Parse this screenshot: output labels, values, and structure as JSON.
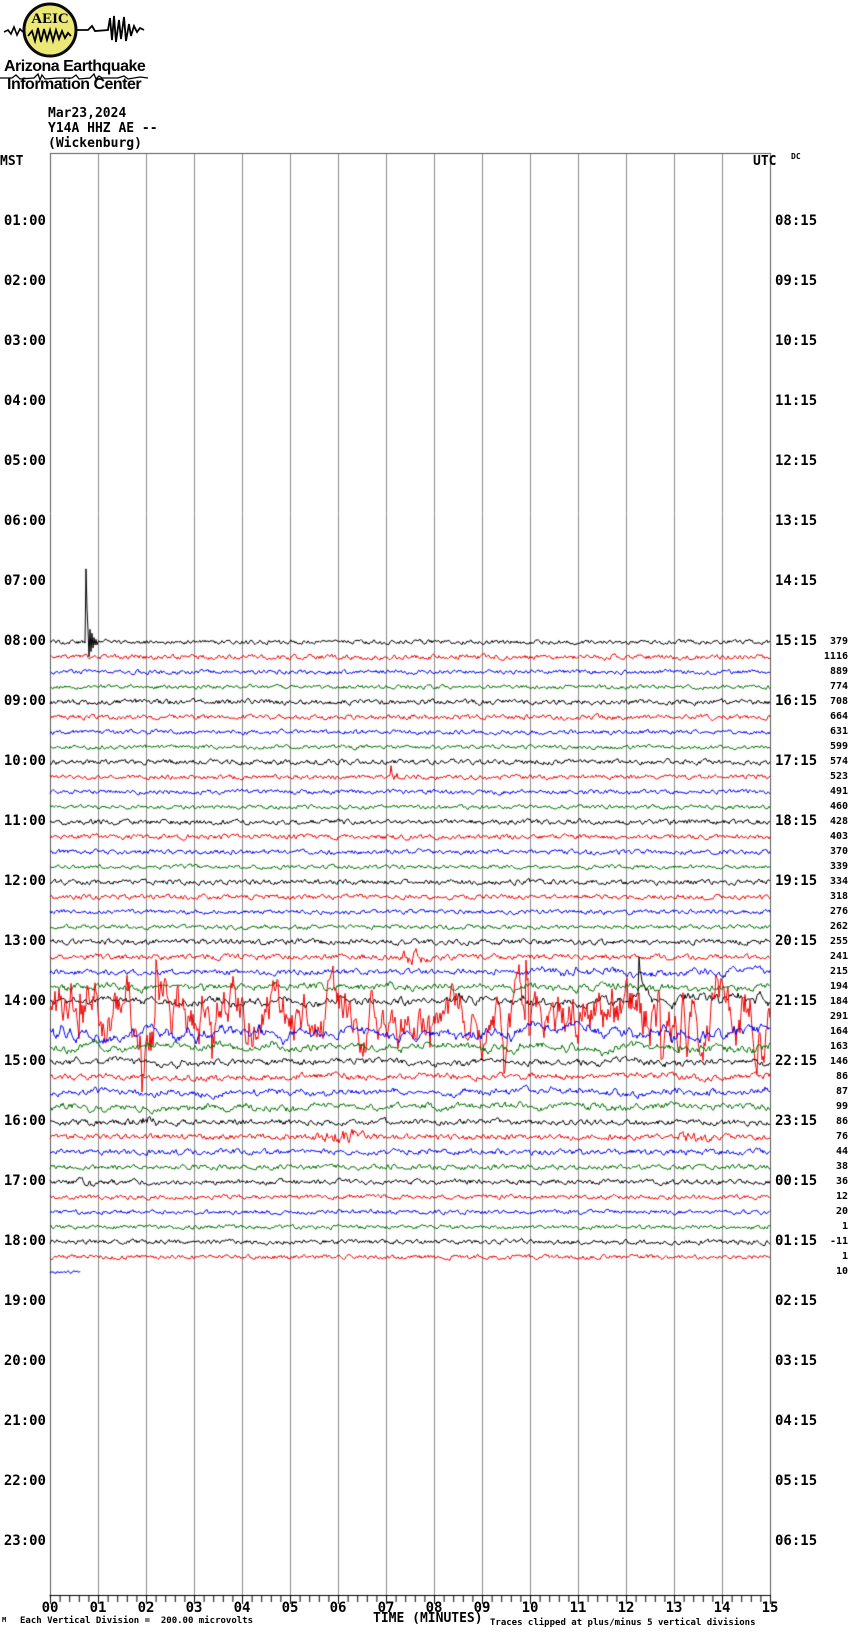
{
  "logo": {
    "acronym": "AEIC",
    "title_line1": "Arizona Earthquake",
    "title_line2": "Information Center",
    "circle_fill": "#ece878"
  },
  "header": {
    "date": "Mar23,2024",
    "station": "Y14A HHZ AE --",
    "location": "(Wickenburg)"
  },
  "axes": {
    "left_label": "MST",
    "right_label": "UTC",
    "dc_label": "DC",
    "x_label": "TIME (MINUTES)",
    "x_ticks": [
      "00",
      "01",
      "02",
      "03",
      "04",
      "05",
      "06",
      "07",
      "08",
      "09",
      "10",
      "11",
      "12",
      "13",
      "14",
      "15"
    ],
    "left_times": [
      "01:00",
      "02:00",
      "03:00",
      "04:00",
      "05:00",
      "06:00",
      "07:00",
      "08:00",
      "09:00",
      "10:00",
      "11:00",
      "12:00",
      "13:00",
      "14:00",
      "15:00",
      "16:00",
      "17:00",
      "18:00",
      "19:00",
      "20:00",
      "21:00",
      "22:00",
      "23:00"
    ],
    "right_times": [
      "08:15",
      "09:15",
      "10:15",
      "11:15",
      "12:15",
      "13:15",
      "14:15",
      "15:15",
      "16:15",
      "17:15",
      "18:15",
      "19:15",
      "20:15",
      "21:15",
      "22:15",
      "23:15",
      "00:15",
      "01:15",
      "02:15",
      "03:15",
      "04:15",
      "05:15",
      "06:15"
    ]
  },
  "footer": {
    "scale_note": "Each Vertical Division =  200.00 microvolts",
    "clip_note": "Traces clipped at plus/minus 5 vertical divisions",
    "corner_mark": "M"
  },
  "chart_data": {
    "type": "line",
    "title": "Helicorder seismogram, station Y14A HHZ AE (Wickenburg), Mar 23 2024",
    "x_range_minutes": [
      0,
      15
    ],
    "minutes_per_line": 15,
    "vertical_division_microvolts": 200.0,
    "clip_divisions": 5,
    "first_trace_mst": "08:00",
    "last_trace_mst": "18:30",
    "trace_colors": {
      "black": "#000000",
      "red": "#f00000",
      "blue": "#0000f0",
      "green": "#007000"
    },
    "grid_color": "#8a8a8a",
    "rows": [
      {
        "dc": 379,
        "color": "black",
        "amp": 2.0,
        "events": [
          {
            "type": "spike",
            "min": 0.74,
            "up": 75,
            "down": 20
          }
        ]
      },
      {
        "dc": 1116,
        "color": "red",
        "amp": 2.2
      },
      {
        "dc": 889,
        "color": "blue",
        "amp": 2.0
      },
      {
        "dc": 774,
        "color": "green",
        "amp": 1.8
      },
      {
        "dc": 708,
        "color": "black",
        "amp": 2.3
      },
      {
        "dc": 664,
        "color": "red",
        "amp": 2.2
      },
      {
        "dc": 631,
        "color": "blue",
        "amp": 2.0
      },
      {
        "dc": 599,
        "color": "green",
        "amp": 1.8
      },
      {
        "dc": 574,
        "color": "black",
        "amp": 2.3
      },
      {
        "dc": 523,
        "color": "red",
        "amp": 2.1,
        "events": [
          {
            "type": "spike",
            "min": 7.1,
            "up": 12,
            "down": 3
          }
        ]
      },
      {
        "dc": 491,
        "color": "blue",
        "amp": 2.0
      },
      {
        "dc": 460,
        "color": "green",
        "amp": 1.8
      },
      {
        "dc": 428,
        "color": "black",
        "amp": 2.3
      },
      {
        "dc": 403,
        "color": "red",
        "amp": 2.2
      },
      {
        "dc": 370,
        "color": "blue",
        "amp": 2.1
      },
      {
        "dc": 339,
        "color": "green",
        "amp": 1.8
      },
      {
        "dc": 334,
        "color": "black",
        "amp": 2.3
      },
      {
        "dc": 318,
        "color": "red",
        "amp": 2.2
      },
      {
        "dc": 276,
        "color": "blue",
        "amp": 2.0
      },
      {
        "dc": 262,
        "color": "green",
        "amp": 1.9
      },
      {
        "dc": 255,
        "color": "black",
        "amp": 2.5
      },
      {
        "dc": 241,
        "color": "red",
        "amp": 2.4,
        "events": [
          {
            "type": "burst",
            "from": 7.1,
            "to": 8.0,
            "amp": 4
          }
        ]
      },
      {
        "dc": 215,
        "color": "blue",
        "env": [
          2.5,
          2.5,
          2.5,
          2.5,
          2.5,
          2.5,
          2.5,
          3,
          3,
          4,
          7,
          9,
          8.5,
          7.5,
          7
        ]
      },
      {
        "dc": 194,
        "color": "green",
        "env": [
          7,
          7,
          6.5,
          6,
          6,
          7,
          6.5,
          6,
          5.5,
          6,
          7,
          7,
          6.5,
          6,
          6
        ]
      },
      {
        "dc": 184,
        "color": "black",
        "env": [
          8,
          8,
          7.5,
          7,
          7,
          8,
          7.5,
          7,
          8,
          9,
          10,
          10,
          12,
          13,
          12
        ],
        "events": [
          {
            "type": "spikes",
            "from": 8,
            "to": 15,
            "amp": 40,
            "prob": 0.012,
            "sign": -1
          }
        ]
      },
      {
        "dc": 291,
        "color": "red",
        "rough": true,
        "env": [
          36,
          40,
          38,
          36,
          34,
          37,
          30,
          28,
          27,
          30,
          32,
          34,
          36,
          38,
          36
        ],
        "events": [
          {
            "type": "spikes",
            "from": 0,
            "to": 15,
            "amp": 45,
            "prob": 0.015,
            "sign": 0
          }
        ]
      },
      {
        "dc": 164,
        "color": "blue",
        "env": [
          14,
          13,
          12,
          12,
          11,
          12,
          11,
          10,
          10,
          11,
          12,
          12,
          13,
          14,
          13
        ]
      },
      {
        "dc": 163,
        "color": "green",
        "env": [
          8,
          8,
          8,
          7,
          7,
          8,
          7,
          7,
          7,
          7,
          8,
          8,
          8,
          9,
          8
        ]
      },
      {
        "dc": 146,
        "color": "black",
        "env": [
          6,
          6,
          6,
          5.5,
          5.5,
          6,
          5.5,
          5.5,
          5.5,
          6,
          6,
          6,
          6,
          6.5,
          6
        ]
      },
      {
        "dc": 86,
        "color": "red",
        "env": [
          5,
          5,
          5,
          5,
          4.5,
          5,
          5,
          4.5,
          5,
          5,
          5,
          4.5,
          5,
          5,
          5
        ]
      },
      {
        "dc": 87,
        "color": "blue",
        "env": [
          6,
          6,
          6,
          5.5,
          6,
          6,
          5.5,
          5.5,
          6,
          6,
          6,
          5.5,
          6,
          6,
          6
        ]
      },
      {
        "dc": 99,
        "color": "green",
        "env": [
          6.5,
          6.5,
          6,
          6,
          6.5,
          6,
          6,
          6,
          6,
          6.5,
          6,
          6,
          6.5,
          6.5,
          6
        ]
      },
      {
        "dc": 86,
        "color": "black",
        "amp": 3.5,
        "events": [
          {
            "type": "burst",
            "from": 1.5,
            "to": 2.3,
            "amp": 3
          }
        ]
      },
      {
        "dc": 76,
        "color": "red",
        "amp": 2.6,
        "events": [
          {
            "type": "burst",
            "from": 5.4,
            "to": 6.9,
            "amp": 4
          },
          {
            "type": "burst",
            "from": 12.9,
            "to": 13.9,
            "amp": 3
          }
        ]
      },
      {
        "dc": 44,
        "color": "blue",
        "amp": 2.8
      },
      {
        "dc": 38,
        "color": "green",
        "amp": 2.2
      },
      {
        "dc": 36,
        "color": "black",
        "amp": 2.3,
        "events": [
          {
            "type": "burst",
            "from": 0.5,
            "to": 1.0,
            "amp": 2.5
          }
        ]
      },
      {
        "dc": 12,
        "color": "red",
        "amp": 2.0
      },
      {
        "dc": 20,
        "color": "blue",
        "amp": 2.0
      },
      {
        "dc": 1,
        "color": "green",
        "amp": 1.8
      },
      {
        "dc": -11,
        "color": "black",
        "amp": 2.1
      },
      {
        "dc": 1,
        "color": "red",
        "amp": 2.0
      },
      {
        "dc": 10,
        "color": "blue",
        "amp": 1.5,
        "end_min": 0.62
      }
    ]
  }
}
